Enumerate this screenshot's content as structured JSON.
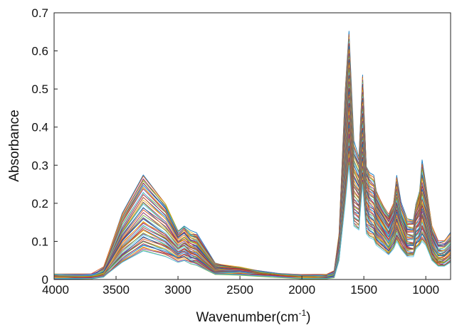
{
  "chart_data": {
    "type": "line",
    "title": "",
    "xlabel": "Wavenumber(cm",
    "xlabel_sup": "-1",
    "xlabel_close": ")",
    "ylabel": "Absorbance",
    "xlim": [
      4000,
      800
    ],
    "x_reversed": true,
    "ylim": [
      0,
      0.7
    ],
    "x_ticks": [
      4000,
      3500,
      3000,
      2500,
      2000,
      1500,
      1000
    ],
    "y_ticks": [
      0,
      0.1,
      0.2,
      0.3,
      0.4,
      0.5,
      0.6,
      0.7
    ],
    "grid": false,
    "legend": "none",
    "series_colors": [
      "#0072bd",
      "#d95319",
      "#edb120",
      "#7e2f8e",
      "#77ac30",
      "#4dbeee",
      "#a2142f"
    ],
    "series": [
      {
        "x": [
          4000,
          3700,
          3600,
          3450,
          3280,
          3100,
          3000,
          2950,
          2900,
          2850,
          2700,
          2500,
          2200,
          2000,
          1800,
          1740,
          1700,
          1650,
          1620,
          1580,
          1540,
          1510,
          1480,
          1455,
          1420,
          1400,
          1340,
          1300,
          1260,
          1235,
          1200,
          1150,
          1100,
          1080,
          1050,
          1030,
          1000,
          950,
          900,
          850,
          800
        ],
        "y": [
          0.013,
          0.012,
          0.03,
          0.17,
          0.273,
          0.2,
          0.13,
          0.14,
          0.125,
          0.12,
          0.045,
          0.03,
          0.015,
          0.01,
          0.01,
          0.02,
          0.12,
          0.5,
          0.65,
          0.36,
          0.32,
          0.54,
          0.3,
          0.28,
          0.27,
          0.23,
          0.19,
          0.17,
          0.2,
          0.27,
          0.2,
          0.16,
          0.16,
          0.2,
          0.23,
          0.31,
          0.25,
          0.14,
          0.1,
          0.1,
          0.12
        ]
      },
      {
        "x": [
          4000,
          3700,
          3600,
          3450,
          3280,
          3100,
          3000,
          2950,
          2900,
          2850,
          2700,
          2500,
          2200,
          2000,
          1800,
          1740,
          1700,
          1650,
          1620,
          1580,
          1540,
          1510,
          1480,
          1455,
          1420,
          1400,
          1340,
          1300,
          1260,
          1235,
          1200,
          1150,
          1100,
          1080,
          1050,
          1030,
          1000,
          950,
          900,
          850,
          800
        ],
        "y": [
          0.01,
          0.009,
          0.025,
          0.15,
          0.24,
          0.18,
          0.115,
          0.13,
          0.11,
          0.105,
          0.04,
          0.028,
          0.013,
          0.008,
          0.008,
          0.018,
          0.1,
          0.45,
          0.6,
          0.32,
          0.29,
          0.5,
          0.27,
          0.25,
          0.24,
          0.2,
          0.17,
          0.15,
          0.18,
          0.24,
          0.18,
          0.14,
          0.14,
          0.18,
          0.21,
          0.26,
          0.22,
          0.12,
          0.085,
          0.085,
          0.1
        ]
      },
      {
        "x": [
          4000,
          3700,
          3600,
          3450,
          3280,
          3100,
          3000,
          2950,
          2900,
          2850,
          2700,
          2500,
          2200,
          2000,
          1800,
          1740,
          1700,
          1650,
          1620,
          1580,
          1540,
          1510,
          1480,
          1455,
          1420,
          1400,
          1340,
          1300,
          1260,
          1235,
          1200,
          1150,
          1100,
          1080,
          1050,
          1030,
          1000,
          950,
          900,
          850,
          800
        ],
        "y": [
          0.008,
          0.007,
          0.02,
          0.12,
          0.2,
          0.15,
          0.1,
          0.11,
          0.095,
          0.09,
          0.035,
          0.025,
          0.012,
          0.007,
          0.007,
          0.015,
          0.09,
          0.4,
          0.55,
          0.28,
          0.25,
          0.45,
          0.24,
          0.22,
          0.21,
          0.18,
          0.15,
          0.13,
          0.16,
          0.21,
          0.16,
          0.12,
          0.12,
          0.16,
          0.18,
          0.22,
          0.19,
          0.1,
          0.07,
          0.07,
          0.09
        ]
      },
      {
        "x": [
          4000,
          3700,
          3600,
          3450,
          3280,
          3100,
          3000,
          2950,
          2900,
          2850,
          2700,
          2500,
          2200,
          2000,
          1800,
          1740,
          1700,
          1650,
          1620,
          1580,
          1540,
          1510,
          1480,
          1455,
          1420,
          1400,
          1340,
          1300,
          1260,
          1235,
          1200,
          1150,
          1100,
          1080,
          1050,
          1030,
          1000,
          950,
          900,
          850,
          800
        ],
        "y": [
          0.006,
          0.006,
          0.016,
          0.1,
          0.16,
          0.12,
          0.085,
          0.095,
          0.08,
          0.075,
          0.03,
          0.022,
          0.011,
          0.006,
          0.006,
          0.012,
          0.08,
          0.35,
          0.5,
          0.24,
          0.22,
          0.4,
          0.21,
          0.19,
          0.18,
          0.16,
          0.13,
          0.11,
          0.14,
          0.18,
          0.14,
          0.1,
          0.1,
          0.14,
          0.15,
          0.19,
          0.16,
          0.085,
          0.06,
          0.06,
          0.075
        ]
      },
      {
        "x": [
          4000,
          3700,
          3600,
          3450,
          3280,
          3100,
          3000,
          2950,
          2900,
          2850,
          2700,
          2500,
          2200,
          2000,
          1800,
          1740,
          1700,
          1650,
          1620,
          1580,
          1540,
          1510,
          1480,
          1455,
          1420,
          1400,
          1340,
          1300,
          1260,
          1235,
          1200,
          1150,
          1100,
          1080,
          1050,
          1030,
          1000,
          950,
          900,
          850,
          800
        ],
        "y": [
          0.005,
          0.005,
          0.013,
          0.08,
          0.13,
          0.1,
          0.07,
          0.08,
          0.065,
          0.06,
          0.025,
          0.02,
          0.01,
          0.005,
          0.005,
          0.01,
          0.07,
          0.3,
          0.45,
          0.2,
          0.19,
          0.35,
          0.18,
          0.16,
          0.15,
          0.13,
          0.11,
          0.09,
          0.12,
          0.15,
          0.12,
          0.085,
          0.085,
          0.12,
          0.13,
          0.16,
          0.13,
          0.07,
          0.05,
          0.05,
          0.065
        ]
      },
      {
        "x": [
          4000,
          3700,
          3600,
          3450,
          3280,
          3100,
          3000,
          2950,
          2900,
          2850,
          2700,
          2500,
          2200,
          2000,
          1800,
          1740,
          1700,
          1650,
          1620,
          1580,
          1540,
          1510,
          1480,
          1455,
          1420,
          1400,
          1340,
          1300,
          1260,
          1235,
          1200,
          1150,
          1100,
          1080,
          1050,
          1030,
          1000,
          950,
          900,
          850,
          800
        ],
        "y": [
          0.004,
          0.004,
          0.01,
          0.06,
          0.1,
          0.08,
          0.06,
          0.065,
          0.055,
          0.05,
          0.02,
          0.017,
          0.009,
          0.004,
          0.004,
          0.008,
          0.06,
          0.25,
          0.38,
          0.17,
          0.16,
          0.3,
          0.15,
          0.14,
          0.13,
          0.11,
          0.095,
          0.08,
          0.1,
          0.13,
          0.1,
          0.075,
          0.075,
          0.1,
          0.11,
          0.13,
          0.11,
          0.06,
          0.042,
          0.042,
          0.055
        ]
      },
      {
        "x": [
          4000,
          3700,
          3600,
          3450,
          3280,
          3100,
          3000,
          2950,
          2900,
          2850,
          2700,
          2500,
          2200,
          2000,
          1800,
          1740,
          1700,
          1650,
          1620,
          1580,
          1540,
          1510,
          1480,
          1455,
          1420,
          1400,
          1340,
          1300,
          1260,
          1235,
          1200,
          1150,
          1100,
          1080,
          1050,
          1030,
          1000,
          950,
          900,
          850,
          800
        ],
        "y": [
          0.003,
          0.003,
          0.008,
          0.045,
          0.075,
          0.06,
          0.045,
          0.05,
          0.042,
          0.038,
          0.015,
          0.013,
          0.007,
          0.003,
          0.003,
          0.006,
          0.05,
          0.2,
          0.3,
          0.14,
          0.13,
          0.25,
          0.12,
          0.11,
          0.105,
          0.09,
          0.075,
          0.065,
          0.08,
          0.1,
          0.08,
          0.06,
          0.06,
          0.08,
          0.09,
          0.1,
          0.09,
          0.05,
          0.035,
          0.035,
          0.045
        ]
      }
    ]
  }
}
